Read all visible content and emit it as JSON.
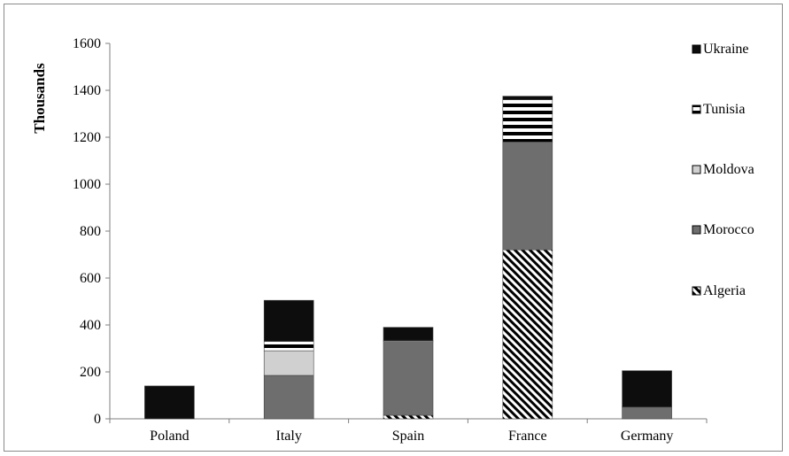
{
  "chart_data": {
    "type": "bar",
    "stacked": true,
    "categories": [
      "Poland",
      "Italy",
      "Spain",
      "France",
      "Germany"
    ],
    "series": [
      {
        "name": "Algeria",
        "values": [
          0,
          0,
          15,
          720,
          0
        ],
        "pattern": "diagonal-hatch",
        "color": "#000000"
      },
      {
        "name": "Morocco",
        "values": [
          0,
          185,
          315,
          460,
          50
        ],
        "pattern": "solid",
        "color": "#6e6e6e"
      },
      {
        "name": "Moldova",
        "values": [
          0,
          105,
          0,
          0,
          0
        ],
        "pattern": "solid",
        "color": "#d0d0d0"
      },
      {
        "name": "Tunisia",
        "values": [
          0,
          40,
          5,
          180,
          0
        ],
        "pattern": "horizontal-stripes",
        "color": "#000000"
      },
      {
        "name": "Ukraine",
        "values": [
          140,
          175,
          55,
          15,
          155
        ],
        "pattern": "solid",
        "color": "#0d0d0d"
      }
    ],
    "ylabel": "Thousands",
    "xlabel": "",
    "ylim": [
      0,
      1600
    ],
    "yticks": [
      0,
      200,
      400,
      600,
      800,
      1000,
      1200,
      1400,
      1600
    ],
    "grid": false,
    "legend_position": "right"
  }
}
